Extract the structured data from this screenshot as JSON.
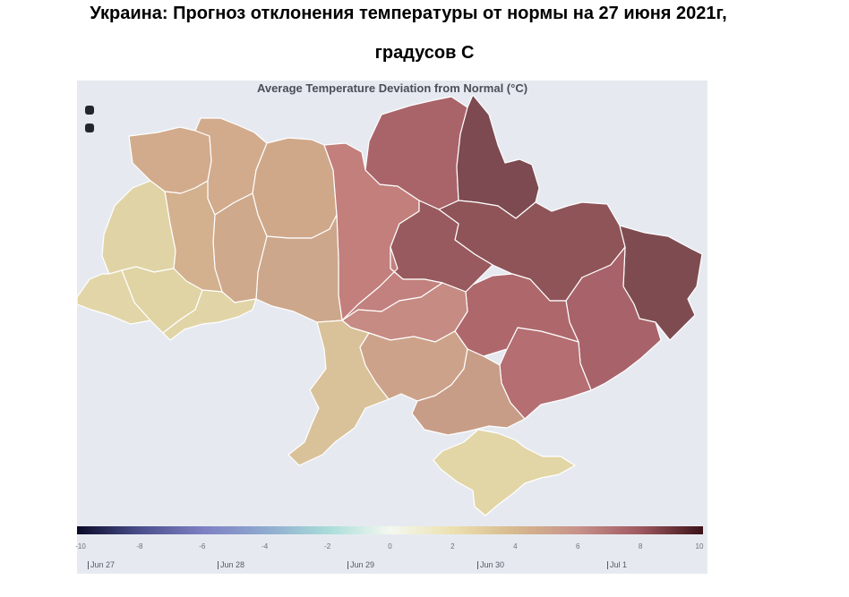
{
  "title": {
    "line1": "Украина:  Прогноз отклонения температуры от нормы на 27 июня 2021г,",
    "line2": "градусов С"
  },
  "map": {
    "title": "Average Temperature Deviation from Normal (°C)",
    "colorbar": {
      "min": -10,
      "max": 10,
      "ticks": [
        "-10",
        "-8",
        "-6",
        "-4",
        "-2",
        "0",
        "2",
        "4",
        "6",
        "8",
        "10"
      ],
      "colors": {
        "-10": "#0a0a28",
        "-8": "#4a4f8c",
        "-6": "#7d7fc2",
        "-4": "#8fa9d0",
        "-2": "#a8dcd8",
        "0": "#f4f8f0",
        "2": "#ece0b0",
        "4": "#d6b88e",
        "6": "#c7928a",
        "8": "#9e5860",
        "10": "#3a1218"
      }
    },
    "timeline": [
      "Jun 27",
      "Jun 28",
      "Jun 29",
      "Jun 30",
      "Jul 1"
    ],
    "regions": [
      {
        "id": "volyn",
        "value": 3.8,
        "color": "#d2ab8c"
      },
      {
        "id": "rivne",
        "value": 3.8,
        "color": "#d1ab8c"
      },
      {
        "id": "zhytomyr",
        "value": 3.9,
        "color": "#cfa88a"
      },
      {
        "id": "kyiv",
        "value": 5.4,
        "color": "#c37f7b"
      },
      {
        "id": "chernihiv",
        "value": 6.9,
        "color": "#a9646a"
      },
      {
        "id": "sumy",
        "value": 8.6,
        "color": "#7c4a50"
      },
      {
        "id": "kharkiv",
        "value": 8.0,
        "color": "#8f5458"
      },
      {
        "id": "luhansk",
        "value": 8.2,
        "color": "#7e4c50"
      },
      {
        "id": "donetsk",
        "value": 6.9,
        "color": "#a8636a"
      },
      {
        "id": "zaporizhzhia",
        "value": 6.3,
        "color": "#b56e72"
      },
      {
        "id": "dnipro",
        "value": 6.8,
        "color": "#ae686c"
      },
      {
        "id": "poltava",
        "value": 7.6,
        "color": "#985a5e"
      },
      {
        "id": "cherkasy",
        "value": 5.7,
        "color": "#c2817e"
      },
      {
        "id": "kirovohrad",
        "value": 5.3,
        "color": "#c68b83"
      },
      {
        "id": "vinnytsia",
        "value": 3.9,
        "color": "#cda78b"
      },
      {
        "id": "khmelnytskyi",
        "value": 3.8,
        "color": "#cfa98b"
      },
      {
        "id": "ternopil",
        "value": 3.6,
        "color": "#d3b08e"
      },
      {
        "id": "lviv",
        "value": 2.6,
        "color": "#e0d3a5"
      },
      {
        "id": "ivano-frankivsk",
        "value": 2.6,
        "color": "#e0d3a4"
      },
      {
        "id": "zakarpattia",
        "value": 2.5,
        "color": "#e2d6a8"
      },
      {
        "id": "chernivtsi",
        "value": 2.6,
        "color": "#e1d5a7"
      },
      {
        "id": "odesa",
        "value": 3.2,
        "color": "#d9c199"
      },
      {
        "id": "mykolaiv",
        "value": 4.1,
        "color": "#cca38a"
      },
      {
        "id": "kherson",
        "value": 4.6,
        "color": "#c89d88"
      },
      {
        "id": "crimea",
        "value": 2.4,
        "color": "#e2d5a6"
      }
    ]
  }
}
